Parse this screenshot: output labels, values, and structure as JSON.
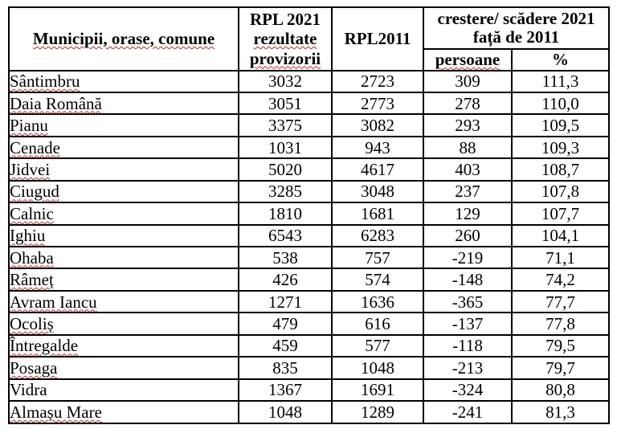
{
  "colors": {
    "grid": "#000000",
    "squiggle": "#e0201b"
  },
  "table": {
    "header": {
      "name_col": "Municipii, orase, comune",
      "rpl2021_lines": [
        "RPL 2021",
        "rezultate",
        "provizorii"
      ],
      "rpl2011": "RPL2011",
      "change_lines": [
        "crestere/ scădere 2021",
        "față de 2011"
      ],
      "change_persons": "persoane",
      "change_percent": "%"
    },
    "rows": [
      {
        "name": "Sântimbru",
        "rpl2021": "3032",
        "rpl2011": "2723",
        "change_persons": "309",
        "change_percent": "111,3"
      },
      {
        "name": "Daia Română",
        "rpl2021": "3051",
        "rpl2011": "2773",
        "change_persons": "278",
        "change_percent": "110,0"
      },
      {
        "name": "Pianu",
        "rpl2021": "3375",
        "rpl2011": "3082",
        "change_persons": "293",
        "change_percent": "109,5"
      },
      {
        "name": "Cenade",
        "rpl2021": "1031",
        "rpl2011": "943",
        "change_persons": "88",
        "change_percent": "109,3"
      },
      {
        "name": "Jidvei",
        "rpl2021": "5020",
        "rpl2011": "4617",
        "change_persons": "403",
        "change_percent": "108,7"
      },
      {
        "name": "Ciugud",
        "rpl2021": "3285",
        "rpl2011": "3048",
        "change_persons": "237",
        "change_percent": "107,8"
      },
      {
        "name": "Calnic",
        "rpl2021": "1810",
        "rpl2011": "1681",
        "change_persons": "129",
        "change_percent": "107,7"
      },
      {
        "name": "Ighiu",
        "rpl2021": "6543",
        "rpl2011": "6283",
        "change_persons": "260",
        "change_percent": "104,1"
      },
      {
        "name": "Ohaba",
        "rpl2021": "538",
        "rpl2011": "757",
        "change_persons": "-219",
        "change_percent": "71,1"
      },
      {
        "name": "Râmeț",
        "rpl2021": "426",
        "rpl2011": "574",
        "change_persons": "-148",
        "change_percent": "74,2"
      },
      {
        "name": "Avram Iancu",
        "rpl2021": "1271",
        "rpl2011": "1636",
        "change_persons": "-365",
        "change_percent": "77,7"
      },
      {
        "name": "Ocoliș",
        "rpl2021": "479",
        "rpl2011": "616",
        "change_persons": "-137",
        "change_percent": "77,8"
      },
      {
        "name": "Întregalde",
        "rpl2021": "459",
        "rpl2011": "577",
        "change_persons": "-118",
        "change_percent": "79,5"
      },
      {
        "name": "Posaga",
        "rpl2021": "835",
        "rpl2011": "1048",
        "change_persons": "-213",
        "change_percent": "79,7"
      },
      {
        "name": "Vidra",
        "rpl2021": "1367",
        "rpl2011": "1691",
        "change_persons": "-324",
        "change_percent": "80,8"
      },
      {
        "name": "Almașu Mare",
        "rpl2021": "1048",
        "rpl2011": "1289",
        "change_persons": "-241",
        "change_percent": "81,3"
      }
    ]
  }
}
